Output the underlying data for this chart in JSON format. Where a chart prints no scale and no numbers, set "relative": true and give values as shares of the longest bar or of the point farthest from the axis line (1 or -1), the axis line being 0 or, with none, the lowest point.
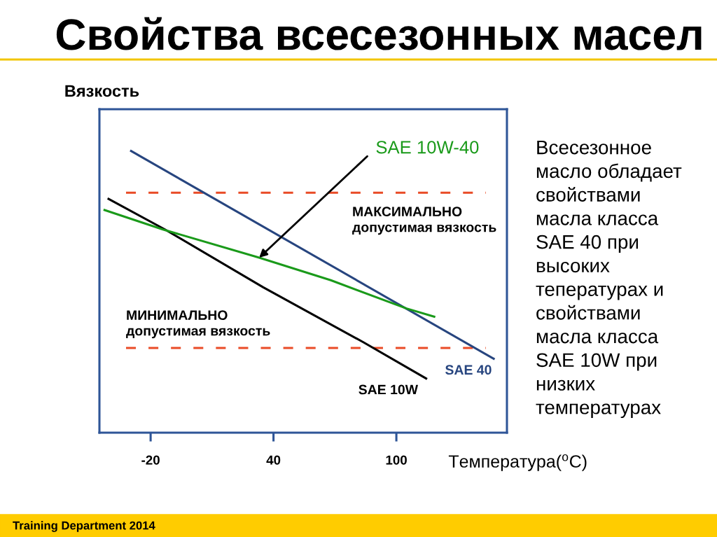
{
  "chart_data": {
    "type": "line",
    "title": "Свойства всесезонных масел",
    "xlabel": "Температура($^{o}$C)",
    "ylabel": "Вязкость",
    "relative": true,
    "xlim": [
      -45,
      154
    ],
    "xticks": [
      -20,
      40,
      100
    ],
    "series": [
      {
        "name": "SAE 40",
        "color": "#27457f",
        "x": [
          -30,
          148
        ],
        "values": [
          1.0,
          0.26
        ]
      },
      {
        "name": "SAE 10W",
        "color": "#000000",
        "x": [
          -41,
          -13,
          35,
          84,
          115
        ],
        "values": [
          0.83,
          0.72,
          0.515,
          0.32,
          0.19
        ]
      },
      {
        "name": "SAE 10W-40",
        "color": "#1a9a1a",
        "x": [
          -43,
          -14,
          33,
          68,
          105,
          119
        ],
        "values": [
          0.79,
          0.72,
          0.62,
          0.54,
          0.44,
          0.41
        ]
      }
    ],
    "ref_lines": [
      {
        "axis": "y",
        "value": 0.85,
        "label": "МАКСИМАЛЬНО\nдопустимая вязкость",
        "color": "#e94b26",
        "line_style": "dashed"
      },
      {
        "axis": "y",
        "value": 0.3,
        "label": "МИНИМАЛЬНО\nдопустимая вязкость",
        "color": "#e94b26",
        "line_style": "dashed"
      }
    ],
    "annotations": [
      "Всесезонное\nмасло обладает\nсвойствами\nмасла класса\nSAE 40 при\nвысоких\nтепературах и\nсвойствами\nмасла класса\nSAE 10W при\nнизких\nтемпературах",
      "Training Department 2014"
    ]
  }
}
